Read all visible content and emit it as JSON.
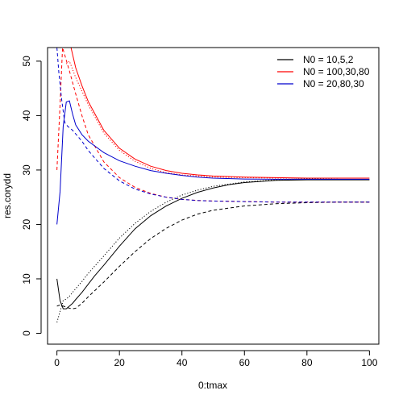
{
  "chart_data": {
    "type": "line",
    "title": "",
    "xlabel": "0:tmax",
    "ylabel": "res.corydd",
    "xlim": [
      -3,
      103
    ],
    "ylim": [
      -2,
      52.5
    ],
    "xticks": [
      0,
      20,
      40,
      60,
      80,
      100
    ],
    "yticks": [
      0,
      10,
      20,
      30,
      40,
      50
    ],
    "grid": false,
    "legend_position": "top-right",
    "legend": [
      {
        "label": "N0 =  10,5,2",
        "color": "#000000"
      },
      {
        "label": "N0 =  100,30,80",
        "color": "#ff0000"
      },
      {
        "label": "N0 =  20,80,30",
        "color": "#0000cd"
      }
    ],
    "series": [
      {
        "color": "#000000",
        "style": "solid",
        "x": [
          0,
          1,
          2,
          3,
          4,
          5,
          6,
          8,
          10,
          12,
          15,
          20,
          25,
          30,
          35,
          40,
          45,
          50,
          55,
          60,
          70,
          80,
          90,
          100
        ],
        "y": [
          10,
          6,
          4.5,
          4.5,
          5,
          5.5,
          6.2,
          7.5,
          9,
          10.5,
          12.5,
          16,
          19.2,
          21.6,
          23.4,
          24.8,
          25.9,
          26.7,
          27.3,
          27.7,
          28.1,
          28.2,
          28.2,
          28.2
        ]
      },
      {
        "color": "#000000",
        "style": "dashed",
        "x": [
          0,
          1,
          2,
          3,
          4,
          5,
          6,
          8,
          10,
          15,
          20,
          25,
          30,
          35,
          40,
          45,
          50,
          60,
          70,
          80,
          90,
          100
        ],
        "y": [
          5,
          5.2,
          5,
          4.8,
          4.6,
          4.5,
          4.6,
          5.5,
          6.7,
          9.4,
          12.3,
          15,
          17.4,
          19.3,
          20.8,
          21.9,
          22.6,
          23.4,
          23.8,
          24.0,
          24.1,
          24.1
        ]
      },
      {
        "color": "#000000",
        "style": "dotted",
        "x": [
          0,
          1,
          2,
          3,
          4,
          5,
          6,
          8,
          10,
          15,
          20,
          25,
          30,
          35,
          40,
          45,
          50,
          60,
          70,
          80,
          90,
          100
        ],
        "y": [
          2,
          4,
          6,
          6.3,
          6.8,
          7.5,
          8.2,
          9.5,
          11,
          14.2,
          17.5,
          20.2,
          22.4,
          24.1,
          25.4,
          26.3,
          27,
          27.8,
          28.2,
          28.4,
          28.5,
          28.5
        ]
      },
      {
        "color": "#ff0000",
        "style": "solid",
        "x": [
          4.5,
          6,
          8,
          10,
          15,
          20,
          25,
          30,
          35,
          40,
          45,
          50,
          60,
          70,
          80,
          90,
          100
        ],
        "y": [
          52.5,
          48.8,
          45.5,
          42.6,
          37.3,
          34,
          32,
          30.7,
          29.9,
          29.4,
          29.1,
          28.9,
          28.7,
          28.6,
          28.5,
          28.5,
          28.5
        ]
      },
      {
        "color": "#ff0000",
        "style": "dashed",
        "x": [
          0,
          1,
          1.8,
          4,
          6,
          8,
          10,
          15,
          20,
          25,
          30,
          35,
          40,
          45,
          50,
          60,
          70,
          80,
          90,
          100
        ],
        "y": [
          30,
          42,
          52.5,
          48.2,
          44,
          40,
          36.5,
          31.5,
          28.6,
          26.8,
          25.7,
          25.0,
          24.6,
          24.4,
          24.3,
          24.2,
          24.1,
          24.1,
          24.1,
          24.1
        ]
      },
      {
        "color": "#ff0000",
        "style": "dotted",
        "x": [
          3,
          4,
          6,
          8,
          10,
          15,
          20,
          25,
          30,
          35,
          40,
          50,
          60,
          70,
          80,
          90,
          100
        ],
        "y": [
          49.5,
          50,
          47,
          44.5,
          42,
          36.8,
          33.6,
          31.6,
          30.3,
          29.5,
          29.1,
          28.7,
          28.6,
          28.5,
          28.5,
          28.5,
          28.5
        ]
      },
      {
        "color": "#0000cd",
        "style": "solid",
        "x": [
          0,
          1,
          2,
          3,
          4,
          5,
          6,
          8,
          10,
          15,
          20,
          25,
          30,
          35,
          40,
          45,
          50,
          60,
          70,
          80,
          90,
          100
        ],
        "y": [
          20,
          26,
          38,
          42.5,
          42.7,
          40.3,
          38.3,
          36.5,
          35.3,
          33.2,
          31.7,
          30.7,
          29.9,
          29.4,
          29.0,
          28.7,
          28.5,
          28.35,
          28.3,
          28.3,
          28.3,
          28.3
        ]
      },
      {
        "color": "#0000cd",
        "style": "dashed",
        "x": [
          0,
          0.6,
          1.5,
          2.5,
          3.5,
          5,
          8,
          10,
          15,
          20,
          25,
          30,
          35,
          40,
          45,
          50,
          60,
          70,
          80,
          90,
          100
        ],
        "y": [
          52.5,
          48,
          43,
          38.7,
          38,
          37.3,
          35.3,
          33.6,
          30.3,
          28,
          26.5,
          25.6,
          25,
          24.6,
          24.4,
          24.3,
          24.2,
          24.1,
          24.1,
          24.1,
          24.1
        ]
      }
    ]
  }
}
